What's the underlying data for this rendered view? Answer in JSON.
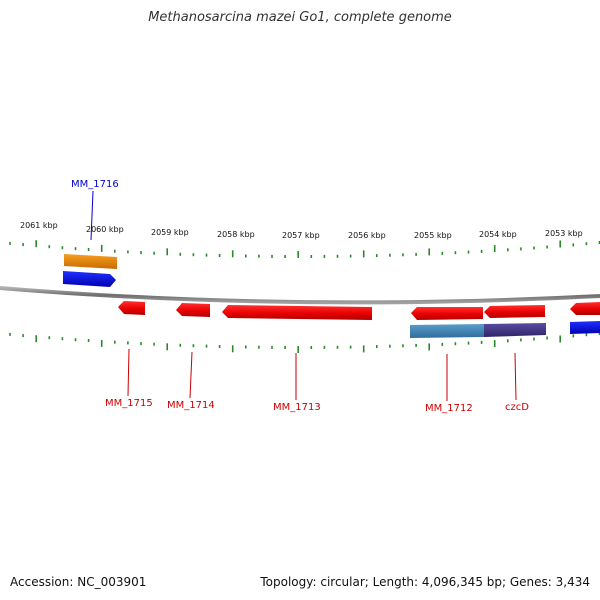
{
  "title": "Methanosarcina mazei Go1, complete genome",
  "footer": {
    "accession": "Accession: NC_003901",
    "summary": "Topology: circular; Length: 4,096,345 bp; Genes: 3,434"
  },
  "tick_labels": [
    "2061 kbp",
    "2060 kbp",
    "2059 kbp",
    "2058 kbp",
    "2057 kbp",
    "2056 kbp",
    "2055 kbp",
    "2054 kbp",
    "2053 kbp"
  ],
  "genes": [
    {
      "label": "MM_1716",
      "strand": "forward",
      "color": "#0000cc"
    },
    {
      "label": "MM_1715",
      "strand": "reverse",
      "color": "#cc0000"
    },
    {
      "label": "MM_1714",
      "strand": "reverse",
      "color": "#cc0000"
    },
    {
      "label": "MM_1713",
      "strand": "reverse",
      "color": "#cc0000"
    },
    {
      "label": "MM_1712",
      "strand": "reverse",
      "color": "#cc0000"
    },
    {
      "label": "czcD",
      "strand": "reverse",
      "color": "#cc0000"
    }
  ],
  "colors": {
    "tick": "#2a8a2a",
    "backbone": "#8a8a8a",
    "forward_gene": "#0000ee",
    "reverse_gene": "#ee0000",
    "forward_feature": "#f08c00",
    "reverse_feature": "#4a86b4",
    "reverse_feature_2": "#4a3c8c"
  }
}
